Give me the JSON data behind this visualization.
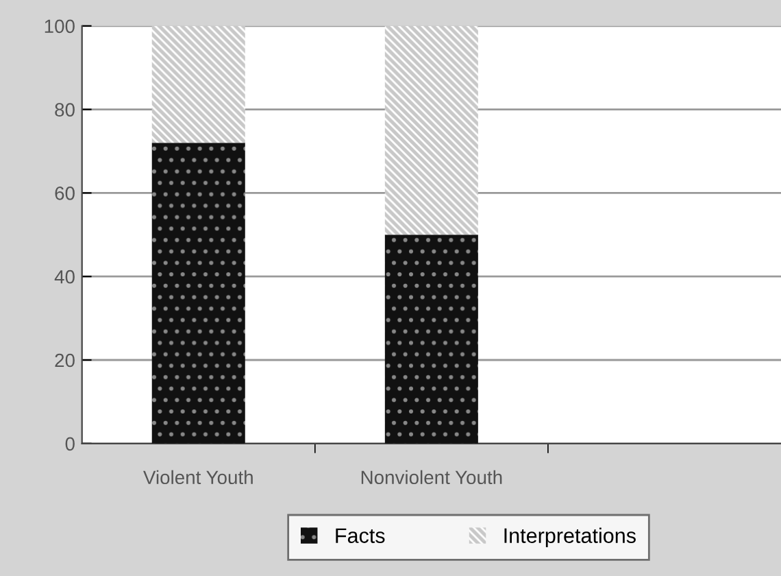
{
  "chart_data": {
    "type": "bar",
    "stacked": true,
    "categories": [
      "Violent Youth",
      "Nonviolent Youth",
      null
    ],
    "series": [
      {
        "name": "Facts",
        "color": "#111111",
        "values": [
          72,
          50,
          null
        ]
      },
      {
        "name": "Interpretations",
        "color": "#c8c8c8",
        "values": [
          28,
          50,
          null
        ]
      }
    ],
    "ylim": [
      0,
      100
    ],
    "yticks": [
      0,
      20,
      40,
      60,
      80,
      100
    ],
    "grid": "y",
    "legend": "bottom"
  }
}
